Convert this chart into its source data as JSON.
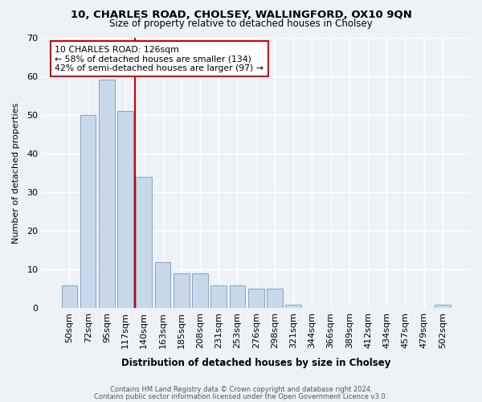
{
  "title1": "10, CHARLES ROAD, CHOLSEY, WALLINGFORD, OX10 9QN",
  "title2": "Size of property relative to detached houses in Cholsey",
  "xlabel": "Distribution of detached houses by size in Cholsey",
  "ylabel": "Number of detached properties",
  "bar_labels": [
    "50sqm",
    "72sqm",
    "95sqm",
    "117sqm",
    "140sqm",
    "163sqm",
    "185sqm",
    "208sqm",
    "231sqm",
    "253sqm",
    "276sqm",
    "298sqm",
    "321sqm",
    "344sqm",
    "366sqm",
    "389sqm",
    "412sqm",
    "434sqm",
    "457sqm",
    "479sqm",
    "502sqm"
  ],
  "bar_values": [
    6,
    50,
    59,
    51,
    34,
    12,
    9,
    9,
    6,
    6,
    5,
    5,
    1,
    0,
    0,
    0,
    0,
    0,
    0,
    0,
    1
  ],
  "bar_color": "#c8d8e8",
  "bar_edge_color": "#7aa8c8",
  "vline_x": 3.5,
  "vline_color": "#cc0000",
  "annotation_text": "10 CHARLES ROAD: 126sqm\n← 58% of detached houses are smaller (134)\n42% of semi-detached houses are larger (97) →",
  "annotation_box_facecolor": "#ffffff",
  "annotation_box_edgecolor": "#cc0000",
  "ylim": [
    0,
    70
  ],
  "yticks": [
    0,
    10,
    20,
    30,
    40,
    50,
    60,
    70
  ],
  "footer1": "Contains HM Land Registry data © Crown copyright and database right 2024.",
  "footer2": "Contains public sector information licensed under the Open Government Licence v3.0.",
  "bg_color": "#eef2f7"
}
